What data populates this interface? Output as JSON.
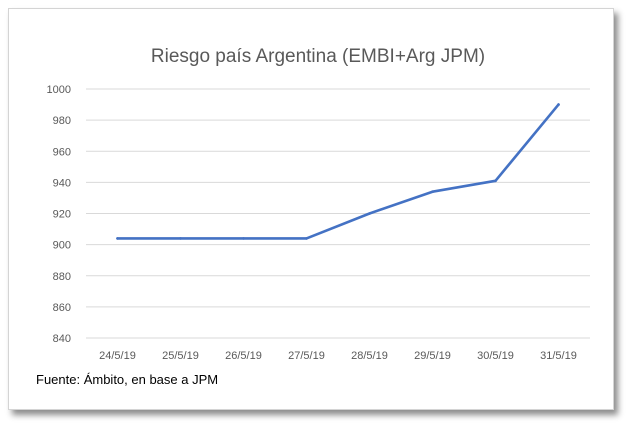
{
  "source_note": "Fuente: Ámbito, en base a JPM",
  "colors": {
    "line": "#4472c4",
    "grid": "#d9d9d9",
    "text": "#595959"
  },
  "chart_data": {
    "type": "line",
    "title": "Riesgo país Argentina (EMBI+Arg JPM)",
    "xlabel": "",
    "ylabel": "",
    "categories": [
      "24/5/19",
      "25/5/19",
      "26/5/19",
      "27/5/19",
      "28/5/19",
      "29/5/19",
      "30/5/19",
      "31/5/19"
    ],
    "series": [
      {
        "values": [
          904,
          904,
          904,
          904,
          920,
          934,
          941,
          990
        ]
      }
    ],
    "ylim": [
      840,
      1000
    ],
    "yticks": [
      840,
      860,
      880,
      900,
      920,
      940,
      960,
      980,
      1000
    ],
    "grid": true,
    "legend": "none"
  }
}
